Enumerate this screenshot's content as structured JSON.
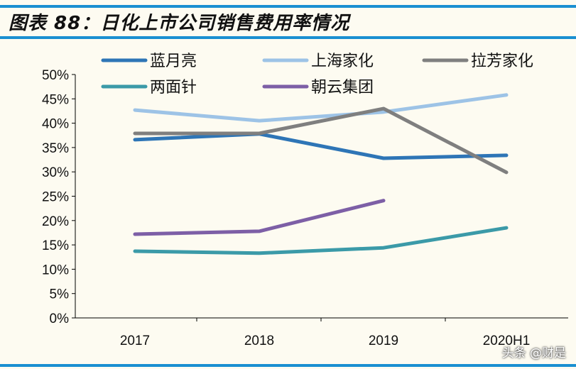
{
  "title": "图表 88：日化上市公司销售费用率情况",
  "watermark": "头条 @财是",
  "chart_data": {
    "type": "line",
    "title": "",
    "categories": [
      "2017",
      "2018",
      "2019",
      "2020H1"
    ],
    "ylim": [
      0,
      50
    ],
    "yticks": [
      "0%",
      "5%",
      "10%",
      "15%",
      "20%",
      "25%",
      "30%",
      "35%",
      "40%",
      "45%",
      "50%"
    ],
    "unit": "%",
    "grid": false,
    "legend": "top",
    "series": [
      {
        "name": "蓝月亮",
        "color": "#2e75b6",
        "values": [
          36.6,
          37.8,
          32.8,
          33.4
        ]
      },
      {
        "name": "上海家化",
        "color": "#9dc3e6",
        "values": [
          42.7,
          40.5,
          42.3,
          45.8
        ]
      },
      {
        "name": "拉芳家化",
        "color": "#7f7f7f",
        "values": [
          37.9,
          37.9,
          43.0,
          29.9
        ]
      },
      {
        "name": "两面针",
        "color": "#3b9aa8",
        "values": [
          13.7,
          13.3,
          14.4,
          18.5
        ]
      },
      {
        "name": "朝云集团",
        "color": "#7d5fa6",
        "values": [
          17.2,
          17.8,
          24.1,
          null
        ]
      }
    ]
  }
}
